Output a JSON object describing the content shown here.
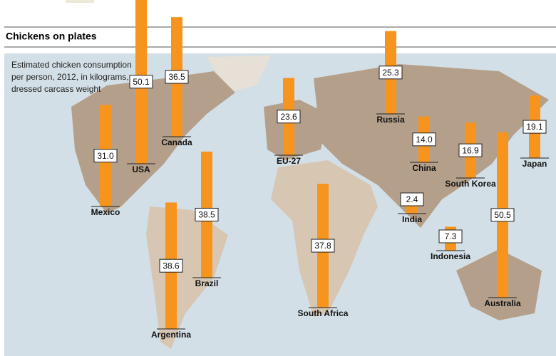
{
  "chart_data": {
    "type": "bar",
    "title": "Chickens on plates",
    "subtitle": [
      "Estimated chicken consumption",
      "per person, 2012, in kilograms,",
      "dressed carcass weight"
    ],
    "categories": [
      "USA",
      "Canada",
      "Mexico",
      "Brazil",
      "Argentina",
      "South Africa",
      "EU-27",
      "Russia",
      "China",
      "India",
      "South Korea",
      "Japan",
      "Indonesia",
      "Australia"
    ],
    "values": [
      50.1,
      36.5,
      31.0,
      38.5,
      38.6,
      37.8,
      23.6,
      25.3,
      14.0,
      2.4,
      16.9,
      19.1,
      7.3,
      50.5
    ],
    "value_labels": [
      "50.1",
      "36.5",
      "31.0",
      "38.5",
      "38.6",
      "37.8",
      "23.6",
      "25.3",
      "14.0",
      "2.4",
      "16.9",
      "19.1",
      "7.3",
      "50.5"
    ],
    "color": "#f7941d"
  }
}
